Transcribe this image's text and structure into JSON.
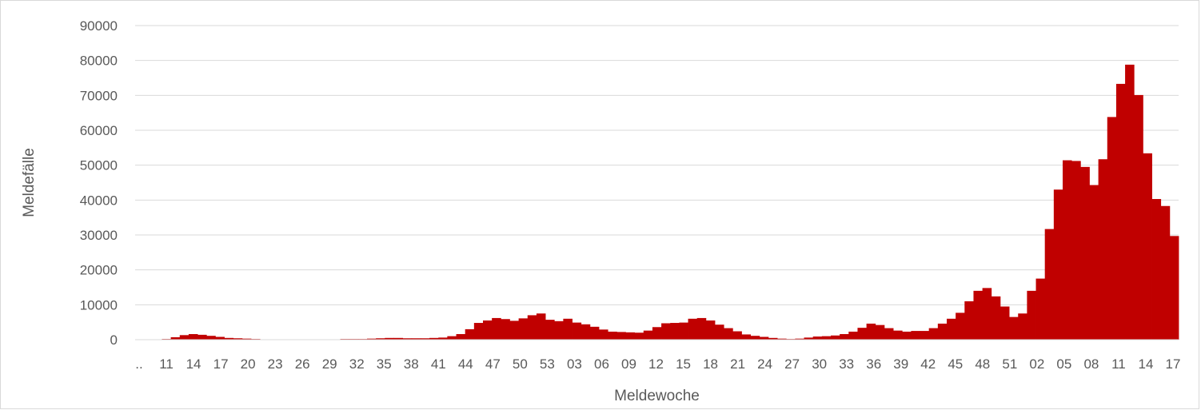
{
  "chart_data": {
    "type": "bar",
    "title": "",
    "xlabel": "Meldewoche",
    "ylabel": "Meldefälle",
    "ylim": [
      0,
      90000
    ],
    "yticks": [
      0,
      10000,
      20000,
      30000,
      40000,
      50000,
      60000,
      70000,
      80000,
      90000
    ],
    "grid": true,
    "legend": "none",
    "bar_color": "#c00000",
    "x_tick_labels": [
      "..",
      "11",
      "14",
      "17",
      "20",
      "23",
      "26",
      "29",
      "32",
      "35",
      "38",
      "41",
      "44",
      "47",
      "50",
      "53",
      "03",
      "06",
      "09",
      "12",
      "15",
      "18",
      "21",
      "24",
      "27",
      "30",
      "33",
      "36",
      "39",
      "42",
      "45",
      "48",
      "51",
      "02",
      "05",
      "08",
      "11",
      "14",
      "17"
    ],
    "values": [
      100,
      100,
      100,
      200,
      700,
      1300,
      1600,
      1400,
      1100,
      800,
      500,
      400,
      300,
      200,
      100,
      100,
      100,
      100,
      100,
      100,
      100,
      100,
      100,
      200,
      200,
      200,
      300,
      400,
      500,
      500,
      400,
      400,
      400,
      500,
      600,
      1000,
      1600,
      3000,
      4800,
      5500,
      6200,
      5900,
      5400,
      6100,
      7000,
      7500,
      5700,
      5300,
      6000,
      4900,
      4400,
      3700,
      2900,
      2300,
      2200,
      2100,
      2000,
      2600,
      3600,
      4700,
      4800,
      4900,
      6000,
      6200,
      5500,
      4300,
      3300,
      2400,
      1500,
      1100,
      800,
      500,
      300,
      200,
      300,
      600,
      900,
      1000,
      1200,
      1600,
      2300,
      3400,
      4600,
      4200,
      3300,
      2600,
      2300,
      2500,
      2500,
      3300,
      4600,
      6000,
      7700,
      11000,
      14000,
      14800,
      12400,
      9500,
      6500,
      7500,
      14000,
      17500,
      31700,
      43000,
      51400,
      51200,
      49500,
      44300,
      51700,
      63800,
      73300,
      78800,
      70100,
      53400,
      40300,
      38300,
      29700
    ]
  }
}
